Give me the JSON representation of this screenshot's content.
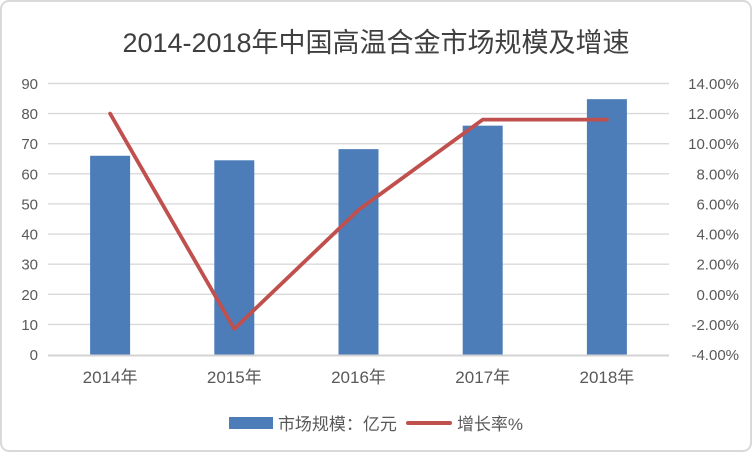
{
  "title": "2014-2018年中国高温合金市场规模及增速",
  "chart_data": {
    "type": "bar+line",
    "title": "2014-2018年中国高温合金市场规模及增速",
    "categories": [
      "2014年",
      "2015年",
      "2016年",
      "2017年",
      "2018年"
    ],
    "series": [
      {
        "name": "市场规模：亿元",
        "type": "bar",
        "axis": "left",
        "values": [
          66,
          64.5,
          68.2,
          76,
          84.8
        ],
        "color": "#4c7db9"
      },
      {
        "name": "增长率%",
        "type": "line",
        "axis": "right",
        "values": [
          12.0,
          -2.3,
          5.6,
          11.6,
          11.6
        ],
        "color": "#c0504d"
      }
    ],
    "left_axis": {
      "min": 0,
      "max": 90,
      "step": 10,
      "labels": [
        "0",
        "10",
        "20",
        "30",
        "40",
        "50",
        "60",
        "70",
        "80",
        "90"
      ]
    },
    "right_axis": {
      "min": -4,
      "max": 14,
      "step": 2,
      "labels": [
        "-4.00%",
        "-2.00%",
        "0.00%",
        "2.00%",
        "4.00%",
        "6.00%",
        "8.00%",
        "10.00%",
        "12.00%",
        "14.00%"
      ]
    },
    "grid": true,
    "legend_position": "bottom",
    "gridline_color": "#d9d9d9",
    "axis_line_color": "#d3d3d3"
  }
}
